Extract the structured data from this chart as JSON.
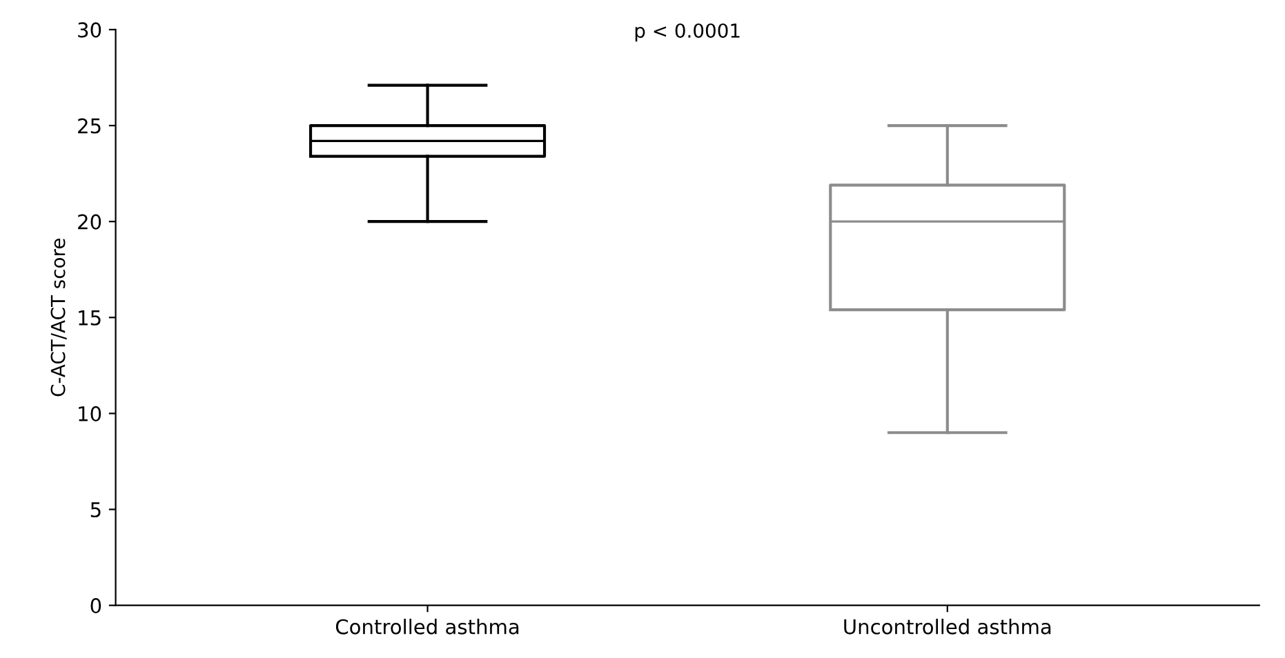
{
  "chart_data": {
    "type": "box",
    "ylabel": "C-ACT/ACT score",
    "categories": [
      "Controlled asthma",
      "Uncontrolled asthma"
    ],
    "boxes": [
      {
        "low": 20,
        "q1": 23.4,
        "median": 24.2,
        "q3": 25,
        "high": 27.1
      },
      {
        "low": 9,
        "q1": 15.4,
        "median": 20,
        "q3": 21.9,
        "high": 25
      }
    ],
    "colors": [
      "#000000",
      "#8c8c8c"
    ],
    "ylim": [
      0,
      30
    ],
    "yticks": [
      0,
      5,
      10,
      15,
      20,
      25,
      30
    ],
    "annotations": [
      "p < 0.0001"
    ],
    "grid": false
  }
}
